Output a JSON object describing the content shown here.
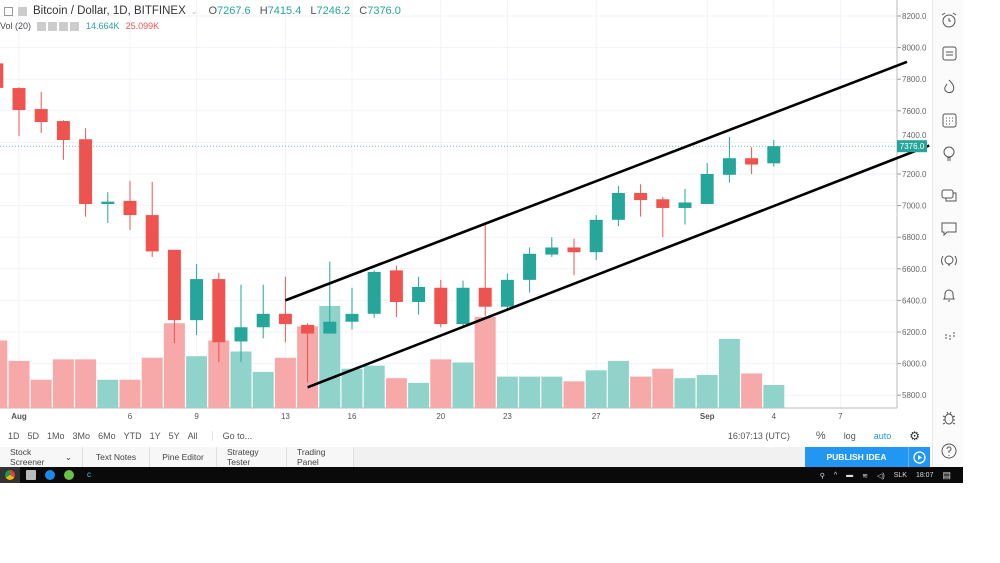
{
  "header": {
    "symbol": "Bitcoin / Dollar, 1D, BITFINEX",
    "o_label": "O",
    "o": "7267.6",
    "h_label": "H",
    "h": "7415.4",
    "l_label": "L",
    "l": "7246.2",
    "c_label": "C",
    "c": "7376.0",
    "volume_label": "Vol (20)",
    "volume_value": "14.664K",
    "volume_ma": "25.099K"
  },
  "colors": {
    "up": "#26a69a",
    "down": "#ef5350",
    "up_volume": "#8fd3ca",
    "down_volume": "#f6a9a8",
    "accent": "#2196f3"
  },
  "chart_data": {
    "type": "candlestick",
    "symbol": "Bitcoin / Dollar",
    "interval": "1D",
    "exchange": "BITFINEX",
    "ylim": [
      5700,
      8260
    ],
    "price_ticks": [
      "8200.0",
      "8000.0",
      "7800.0",
      "7600.0",
      "7400.0",
      "7200.0",
      "7000.0",
      "6800.0",
      "6600.0",
      "6400.0",
      "6200.0",
      "6000.0",
      "5800.0"
    ],
    "last_price_label": "7376.0",
    "time_ticks": [
      {
        "date": "Aug 1",
        "label": "Aug"
      },
      {
        "date": "Aug 6",
        "label": "6"
      },
      {
        "date": "Aug 9",
        "label": "9"
      },
      {
        "date": "Aug 13",
        "label": "13"
      },
      {
        "date": "Aug 16",
        "label": "16"
      },
      {
        "date": "Aug 20",
        "label": "20"
      },
      {
        "date": "Aug 23",
        "label": "23"
      },
      {
        "date": "Aug 27",
        "label": "27"
      },
      {
        "date": "Sep 1",
        "label": "Sep"
      },
      {
        "date": "Sep 4",
        "label": "4"
      },
      {
        "date": "Sep 7",
        "label": "7"
      }
    ],
    "grid": true,
    "candles": [
      {
        "d": "Jul 31",
        "o": 7900,
        "h": 8000,
        "l": 7740,
        "c": 7745,
        "v": 43
      },
      {
        "d": "Aug 1",
        "o": 7744,
        "h": 7750,
        "l": 7440,
        "c": 7605,
        "v": 30
      },
      {
        "d": "Aug 2",
        "o": 7611,
        "h": 7720,
        "l": 7460,
        "c": 7529,
        "v": 18
      },
      {
        "d": "Aug 3",
        "o": 7535,
        "h": 7540,
        "l": 7290,
        "c": 7415,
        "v": 31
      },
      {
        "d": "Aug 4",
        "o": 7420,
        "h": 7490,
        "l": 6930,
        "c": 7010,
        "v": 31
      },
      {
        "d": "Aug 5",
        "o": 7010,
        "h": 7085,
        "l": 6890,
        "c": 7025,
        "v": 18
      },
      {
        "d": "Aug 6",
        "o": 7030,
        "h": 7155,
        "l": 6845,
        "c": 6940,
        "v": 18
      },
      {
        "d": "Aug 7",
        "o": 6940,
        "h": 7150,
        "l": 6675,
        "c": 6710,
        "v": 32
      },
      {
        "d": "Aug 8",
        "o": 6720,
        "h": 6720,
        "l": 6130,
        "c": 6275,
        "v": 54
      },
      {
        "d": "Aug 9",
        "o": 6275,
        "h": 6630,
        "l": 6180,
        "c": 6535,
        "v": 33
      },
      {
        "d": "Aug 10",
        "o": 6535,
        "h": 6575,
        "l": 6010,
        "c": 6135,
        "v": 43
      },
      {
        "d": "Aug 11",
        "o": 6140,
        "h": 6500,
        "l": 6010,
        "c": 6230,
        "v": 36
      },
      {
        "d": "Aug 12",
        "o": 6230,
        "h": 6500,
        "l": 6160,
        "c": 6315,
        "v": 23
      },
      {
        "d": "Aug 13",
        "o": 6315,
        "h": 6550,
        "l": 6135,
        "c": 6250,
        "v": 32
      },
      {
        "d": "Aug 14",
        "o": 6245,
        "h": 6255,
        "l": 5880,
        "c": 6190,
        "v": 52
      },
      {
        "d": "Aug 15",
        "o": 6190,
        "h": 6645,
        "l": 6190,
        "c": 6265,
        "v": 65
      },
      {
        "d": "Aug 16",
        "o": 6265,
        "h": 6480,
        "l": 6215,
        "c": 6315,
        "v": 25
      },
      {
        "d": "Aug 17",
        "o": 6315,
        "h": 6590,
        "l": 6290,
        "c": 6580,
        "v": 27
      },
      {
        "d": "Aug 18",
        "o": 6590,
        "h": 6620,
        "l": 6295,
        "c": 6390,
        "v": 19
      },
      {
        "d": "Aug 19",
        "o": 6390,
        "h": 6550,
        "l": 6310,
        "c": 6485,
        "v": 16
      },
      {
        "d": "Aug 20",
        "o": 6480,
        "h": 6530,
        "l": 6230,
        "c": 6250,
        "v": 31
      },
      {
        "d": "Aug 21",
        "o": 6250,
        "h": 6525,
        "l": 6240,
        "c": 6480,
        "v": 29
      },
      {
        "d": "Aug 22",
        "o": 6480,
        "h": 6890,
        "l": 6300,
        "c": 6360,
        "v": 58
      },
      {
        "d": "Aug 23",
        "o": 6360,
        "h": 6570,
        "l": 6340,
        "c": 6530,
        "v": 20
      },
      {
        "d": "Aug 24",
        "o": 6530,
        "h": 6735,
        "l": 6450,
        "c": 6695,
        "v": 20
      },
      {
        "d": "Aug 25",
        "o": 6690,
        "h": 6800,
        "l": 6675,
        "c": 6735,
        "v": 20
      },
      {
        "d": "Aug 26",
        "o": 6735,
        "h": 6790,
        "l": 6560,
        "c": 6705,
        "v": 17
      },
      {
        "d": "Aug 27",
        "o": 6705,
        "h": 6940,
        "l": 6655,
        "c": 6910,
        "v": 24
      },
      {
        "d": "Aug 28",
        "o": 6910,
        "h": 7125,
        "l": 6870,
        "c": 7080,
        "v": 30
      },
      {
        "d": "Aug 29",
        "o": 7080,
        "h": 7135,
        "l": 6930,
        "c": 7035,
        "v": 20
      },
      {
        "d": "Aug 30",
        "o": 7040,
        "h": 7055,
        "l": 6800,
        "c": 6985,
        "v": 25
      },
      {
        "d": "Aug 31",
        "o": 6985,
        "h": 7105,
        "l": 6880,
        "c": 7020,
        "v": 19
      },
      {
        "d": "Sep 1",
        "o": 7010,
        "h": 7270,
        "l": 7010,
        "c": 7200,
        "v": 21
      },
      {
        "d": "Sep 2",
        "o": 7195,
        "h": 7435,
        "l": 7145,
        "c": 7300,
        "v": 44
      },
      {
        "d": "Sep 3",
        "o": 7300,
        "h": 7370,
        "l": 7200,
        "c": 7260,
        "v": 22
      },
      {
        "d": "Sep 4",
        "o": 7267.6,
        "h": 7415.4,
        "l": 7246.2,
        "c": 7376.0,
        "v": 14.664
      }
    ],
    "volume_unit": "K",
    "trendlines": [
      {
        "from": {
          "d": "Aug 13",
          "p": 6400
        },
        "to": {
          "d": "Sep 10",
          "p": 7910
        }
      },
      {
        "from": {
          "d": "Aug 14",
          "p": 5850
        },
        "to": {
          "d": "Sep 11",
          "p": 7380
        }
      }
    ]
  },
  "bottom_toolbar": {
    "ranges": [
      "1D",
      "5D",
      "1Mo",
      "3Mo",
      "6Mo",
      "YTD",
      "1Y",
      "5Y",
      "All"
    ],
    "goto": "Go to...",
    "time": "16:07:13 (UTC)",
    "percent": "%",
    "log": "log",
    "auto": "auto"
  },
  "panel_tabs": [
    "Stock Screener",
    "Text Notes",
    "Pine Editor",
    "Strategy Tester",
    "Trading Panel"
  ],
  "publish_label": "PUBLISH IDEA",
  "sidebar_icons": [
    "alarm-clock-icon",
    "watchlist-icon",
    "hotlist-icon",
    "calendar-icon",
    "ideas-icon",
    "chats-icon",
    "private-chat-icon",
    "streams-icon",
    "notifications-icon",
    "order-panel-icon",
    "bug-icon",
    "help-icon"
  ],
  "taskbar": {
    "language": "SLK",
    "clock": "18:07"
  }
}
